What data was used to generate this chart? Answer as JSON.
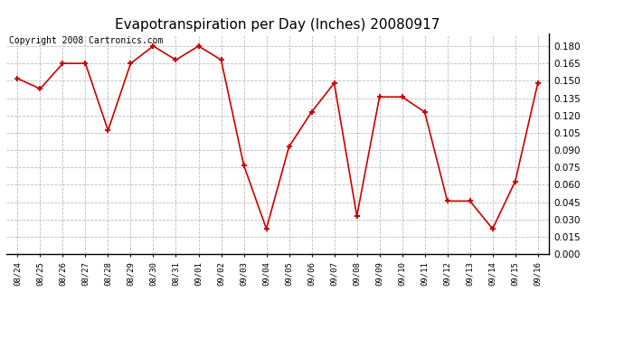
{
  "title": "Evapotranspiration per Day (Inches) 20080917",
  "copyright": "Copyright 2008 Cartronics.com",
  "dates": [
    "08/24",
    "08/25",
    "08/26",
    "08/27",
    "08/28",
    "08/29",
    "08/30",
    "08/31",
    "09/01",
    "09/02",
    "09/03",
    "09/04",
    "09/05",
    "09/06",
    "09/07",
    "09/08",
    "09/09",
    "09/10",
    "09/11",
    "09/12",
    "09/13",
    "09/14",
    "09/15",
    "09/16"
  ],
  "values": [
    0.152,
    0.143,
    0.165,
    0.165,
    0.107,
    0.165,
    0.18,
    0.168,
    0.18,
    0.168,
    0.077,
    0.022,
    0.093,
    0.123,
    0.148,
    0.033,
    0.136,
    0.136,
    0.123,
    0.046,
    0.046,
    0.022,
    0.063,
    0.148
  ],
  "line_color": "#cc0000",
  "marker_color": "#cc0000",
  "bg_color": "#ffffff",
  "plot_bg_color": "#ffffff",
  "grid_color": "#bbbbbb",
  "title_fontsize": 11,
  "copyright_fontsize": 7,
  "ylim": [
    0.0,
    0.1905
  ],
  "yticks": [
    0.0,
    0.015,
    0.03,
    0.045,
    0.06,
    0.075,
    0.09,
    0.105,
    0.12,
    0.135,
    0.15,
    0.165,
    0.18
  ]
}
